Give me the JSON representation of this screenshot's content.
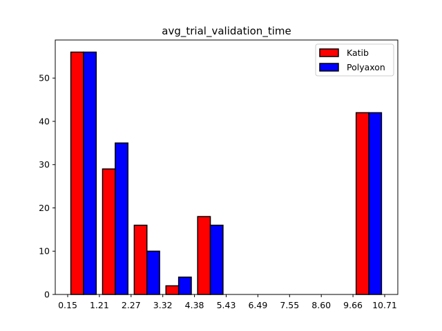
{
  "chart_data": {
    "type": "bar",
    "title": "avg_trial_validation_time",
    "xlabel": "",
    "ylabel": "",
    "x_tick_labels": [
      "0.15",
      "1.21",
      "2.27",
      "3.32",
      "4.38",
      "5.43",
      "6.49",
      "7.55",
      "8.60",
      "9.66",
      "10.71"
    ],
    "y_ticks": [
      0,
      10,
      20,
      30,
      40,
      50
    ],
    "ylim": [
      0,
      58.8
    ],
    "bin_edges": [
      0.15,
      1.21,
      2.27,
      3.32,
      4.38,
      5.43,
      6.49,
      7.55,
      8.6,
      9.66,
      10.71
    ],
    "series": [
      {
        "name": "Katib",
        "color": "#ff0000",
        "values": [
          56,
          29,
          16,
          2,
          18,
          0,
          0,
          0,
          0,
          42
        ]
      },
      {
        "name": "Polyaxon",
        "color": "#0000ff",
        "values": [
          56,
          35,
          10,
          4,
          16,
          0,
          0,
          0,
          0,
          42
        ]
      }
    ],
    "legend_position": "upper-right",
    "grid": false
  }
}
